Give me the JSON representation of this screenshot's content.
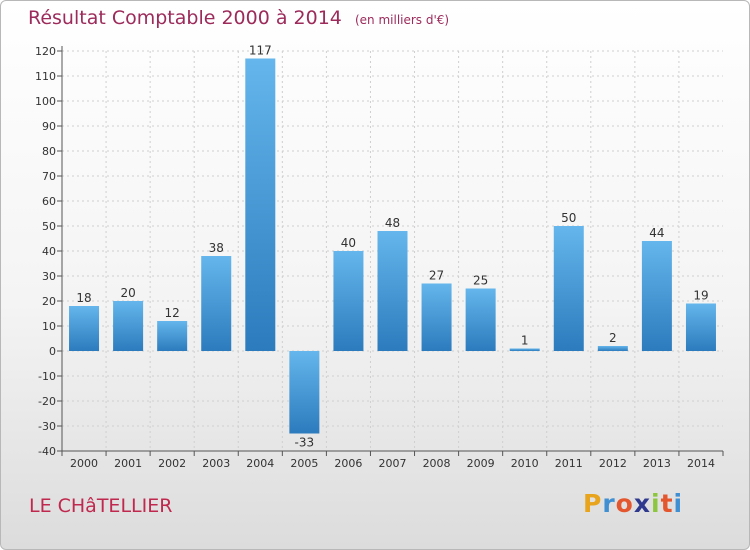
{
  "title": "Résultat Comptable 2000 à 2014",
  "subtitle": "(en milliers d'€)",
  "commune": "LE CHâTELLIER",
  "logo": {
    "letters": [
      "P",
      "r",
      "o",
      "x",
      "i",
      "t",
      "i"
    ],
    "colors": [
      "#e8a41c",
      "#3f8fd2",
      "#e4572e",
      "#2f3a8f",
      "#8cc63f",
      "#e4572e",
      "#3f8fd2"
    ]
  },
  "colors": {
    "bar_light": "#64b6ec",
    "bar_dark": "#2c7bbd",
    "title": "#9c2a5a",
    "commune": "#c0284e"
  },
  "chart_data": {
    "type": "bar",
    "title": "Résultat Comptable 2000 à 2014",
    "subtitle": "(en milliers d'€)",
    "categories": [
      "2000",
      "2001",
      "2002",
      "2003",
      "2004",
      "2005",
      "2006",
      "2007",
      "2008",
      "2009",
      "2010",
      "2011",
      "2012",
      "2013",
      "2014"
    ],
    "values": [
      18,
      20,
      12,
      38,
      117,
      -33,
      40,
      48,
      27,
      25,
      1,
      50,
      2,
      44,
      19
    ],
    "ylim": [
      -40,
      120
    ],
    "yticks": [
      -40,
      -30,
      -20,
      -10,
      0,
      10,
      20,
      30,
      40,
      50,
      60,
      70,
      80,
      90,
      100,
      110,
      120
    ],
    "grid": true,
    "xlabel": "",
    "ylabel": ""
  }
}
